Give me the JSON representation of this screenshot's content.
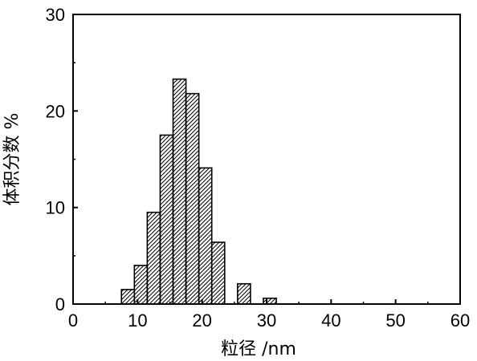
{
  "chart_data": {
    "type": "bar",
    "title": "",
    "xlabel": "粒径 /nm",
    "ylabel": "体积分数 %",
    "xlim": [
      0,
      60
    ],
    "ylim": [
      0,
      30
    ],
    "xticks": [
      0,
      10,
      20,
      30,
      40,
      50,
      60
    ],
    "yticks": [
      0,
      10,
      20,
      30
    ],
    "bin_width": 2,
    "bin_centers": [
      8.5,
      10.5,
      12.5,
      14.5,
      16.5,
      18.5,
      20.5,
      22.5,
      24.5,
      26.5,
      28.5,
      30.5
    ],
    "values": [
      1.5,
      4.0,
      9.5,
      17.5,
      23.3,
      21.8,
      14.1,
      6.4,
      0,
      2.1,
      0,
      0.6
    ],
    "grid": false,
    "legend": "none",
    "bar_fill": "hatched",
    "colors": {
      "bar_stroke": "#000000",
      "hatch": "#000000",
      "background": "#ffffff"
    }
  }
}
